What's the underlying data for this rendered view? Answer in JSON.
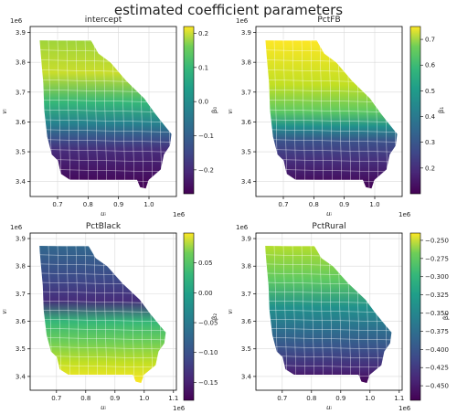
{
  "suptitle": "estimated coefficient parameters",
  "chart_data": [
    {
      "type": "heatmap",
      "title": "intercept",
      "xlabel": "uᵢ",
      "ylabel": "vᵢ",
      "x_offset_label": "1e6",
      "y_offset_label": "1e6",
      "x_ticks": [
        "0.7",
        "0.8",
        "0.9",
        "1.0"
      ],
      "y_ticks": [
        "3.4",
        "3.5",
        "3.6",
        "3.7",
        "3.8",
        "3.9"
      ],
      "xlim": [
        0.61,
        1.09
      ],
      "ylim": [
        3.35,
        3.92
      ],
      "colorbar_label": "β₀",
      "colorbar_range": [
        -0.27,
        0.22
      ],
      "colorbar_ticks": [
        "0.2",
        "0.1",
        "0.0",
        "−0.1",
        "−0.2"
      ],
      "grid": true
    },
    {
      "type": "heatmap",
      "title": "PctFB",
      "xlabel": "uᵢ",
      "ylabel": "vᵢ",
      "x_offset_label": "1e6",
      "y_offset_label": "1e6",
      "x_ticks": [
        "0.7",
        "0.8",
        "0.9",
        "1.0"
      ],
      "y_ticks": [
        "3.4",
        "3.5",
        "3.6",
        "3.7",
        "3.8",
        "3.9"
      ],
      "xlim": [
        0.61,
        1.09
      ],
      "ylim": [
        3.35,
        3.92
      ],
      "colorbar_label": "β₁",
      "colorbar_range": [
        0.1,
        0.75
      ],
      "colorbar_ticks": [
        "0.7",
        "0.6",
        "0.5",
        "0.4",
        "0.3",
        "0.2"
      ],
      "grid": true
    },
    {
      "type": "heatmap",
      "title": "PctBlack",
      "xlabel": "uᵢ",
      "ylabel": "vᵢ",
      "x_offset_label": "1e6",
      "y_offset_label": "1e6",
      "x_ticks": [
        "0.7",
        "0.8",
        "0.9",
        "1.0",
        "1.1"
      ],
      "y_ticks": [
        "3.4",
        "3.5",
        "3.6",
        "3.7",
        "3.8",
        "3.9"
      ],
      "xlim": [
        0.61,
        1.11
      ],
      "ylim": [
        3.35,
        3.92
      ],
      "colorbar_label": "β₂",
      "colorbar_range": [
        -0.18,
        0.1
      ],
      "colorbar_ticks": [
        "0.05",
        "0.00",
        "−0.05",
        "−0.10",
        "−0.15"
      ],
      "grid": true
    },
    {
      "type": "heatmap",
      "title": "PctRural",
      "xlabel": "uᵢ",
      "ylabel": "vᵢ",
      "x_offset_label": "1e6",
      "y_offset_label": "1e6",
      "x_ticks": [
        "0.7",
        "0.8",
        "0.9",
        "1.0",
        "1.1"
      ],
      "y_ticks": [
        "3.4",
        "3.5",
        "3.6",
        "3.7",
        "3.8",
        "3.9"
      ],
      "xlim": [
        0.61,
        1.11
      ],
      "ylim": [
        3.35,
        3.92
      ],
      "colorbar_label": "β₃",
      "colorbar_range": [
        -0.47,
        -0.24
      ],
      "colorbar_ticks": [
        "−0.250",
        "−0.275",
        "−0.300",
        "−0.325",
        "−0.350",
        "−0.375",
        "−0.400",
        "−0.425",
        "−0.450"
      ],
      "grid": true
    }
  ]
}
